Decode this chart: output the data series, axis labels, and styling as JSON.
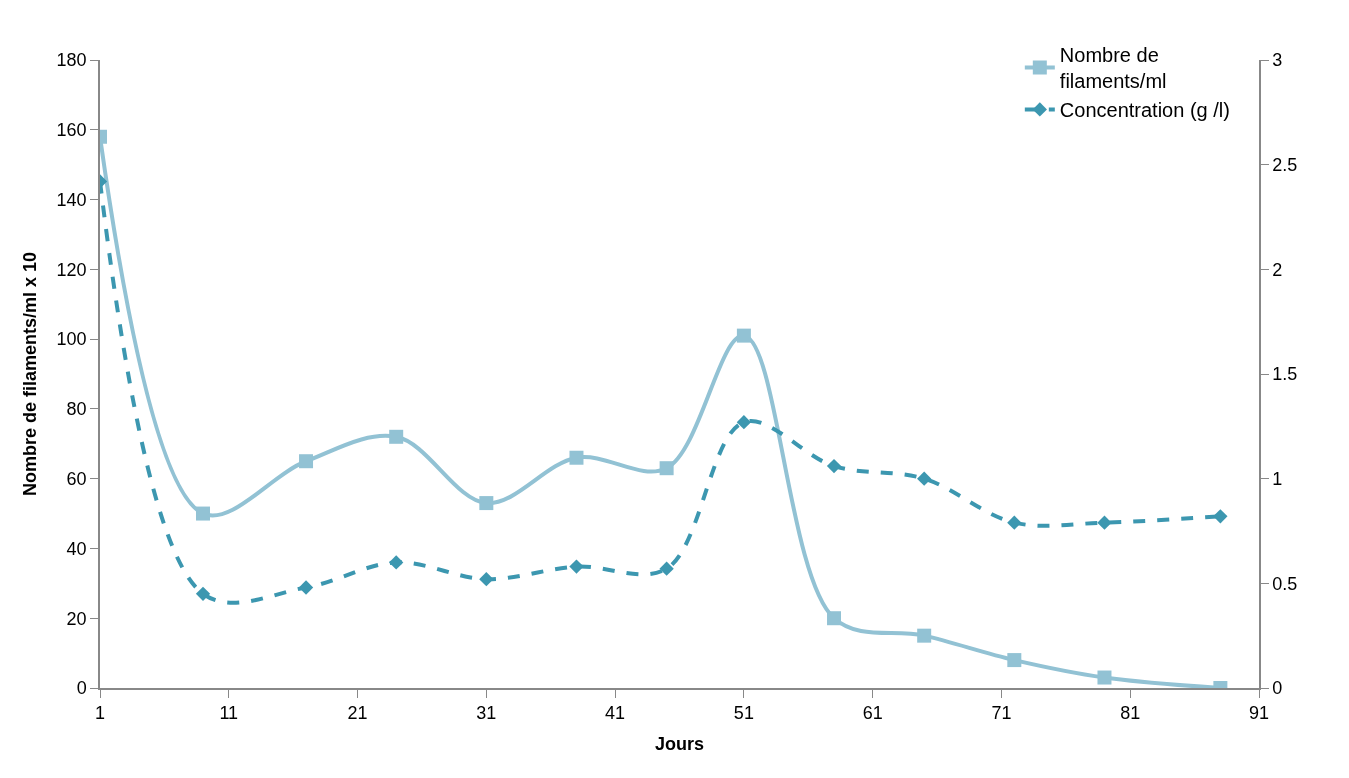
{
  "chart_data": {
    "type": "line",
    "xlabel": "Jours",
    "ylabel": "Nombre de filaments/ml x 10",
    "x": [
      1,
      9,
      17,
      24,
      31,
      38,
      45,
      51,
      58,
      65,
      72,
      79,
      88
    ],
    "series": [
      {
        "name": "Nombre de filaments/ml",
        "color": "#92c2d4",
        "marker": "square",
        "line_style": "solid",
        "values": [
          158,
          50,
          65,
          72,
          53,
          66,
          63,
          101,
          20,
          15,
          8,
          3,
          0
        ]
      },
      {
        "name": "Concentration (g /l)",
        "color": "#3c97b0",
        "marker": "diamond",
        "line_style": "dashed",
        "axis": "y2",
        "values": [
          2.42,
          0.45,
          0.48,
          0.6,
          0.52,
          0.58,
          0.57,
          1.27,
          1.06,
          1.0,
          0.79,
          0.79,
          0.82
        ]
      }
    ],
    "xlim": [
      1,
      91
    ],
    "xticks": [
      1,
      11,
      21,
      31,
      41,
      51,
      61,
      71,
      81,
      91
    ],
    "ylim": [
      0,
      180
    ],
    "yticks": [
      0,
      20,
      40,
      60,
      80,
      100,
      120,
      140,
      160,
      180
    ],
    "y2lim": [
      0,
      3
    ],
    "y2ticks": [
      0,
      0.5,
      1,
      1.5,
      2,
      2.5,
      3
    ],
    "legend": "top right"
  }
}
